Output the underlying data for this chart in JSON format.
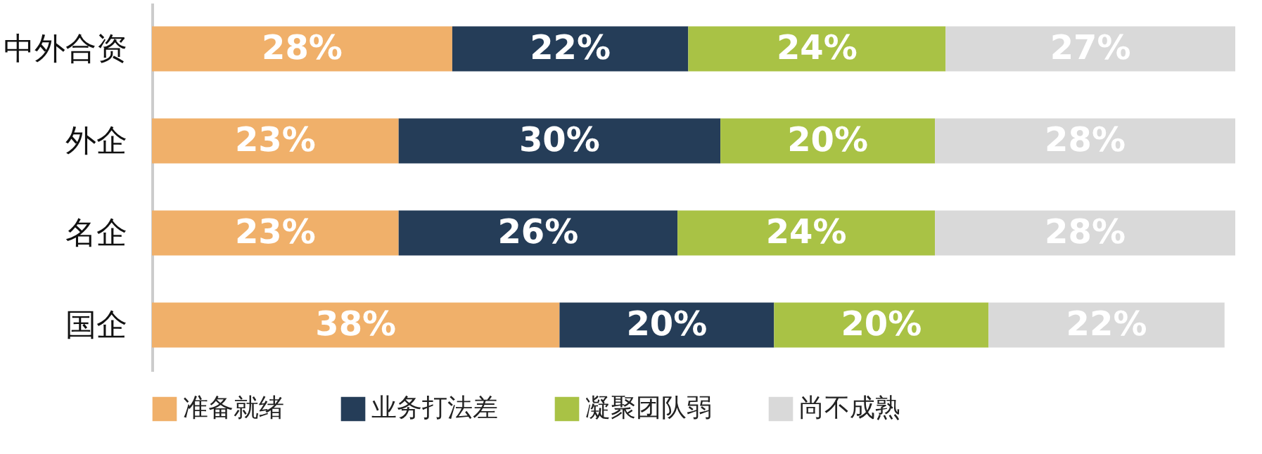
{
  "chart_data": {
    "type": "bar",
    "orientation": "horizontal",
    "stacked": true,
    "legend": "bottom",
    "categories": [
      "中外合资",
      "外企",
      "名企",
      "国企"
    ],
    "series": [
      {
        "name": "准备就绪",
        "color": "#f0b06a",
        "values": [
          28,
          23,
          23,
          38
        ],
        "value_labels": [
          "28%",
          "23%",
          "23%",
          "38%"
        ]
      },
      {
        "name": "业务打法差",
        "color": "#253d58",
        "values": [
          22,
          30,
          26,
          20
        ],
        "value_labels": [
          "22%",
          "30%",
          "26%",
          "20%"
        ]
      },
      {
        "name": "凝聚团队弱",
        "color": "#a9c245",
        "values": [
          24,
          20,
          24,
          20
        ],
        "value_labels": [
          "24%",
          "20%",
          "24%",
          "20%"
        ]
      },
      {
        "name": "尚不成熟",
        "color": "#d9d9d9",
        "values": [
          27,
          28,
          28,
          22
        ],
        "value_labels": [
          "27%",
          "28%",
          "28%",
          "22%"
        ]
      }
    ]
  }
}
